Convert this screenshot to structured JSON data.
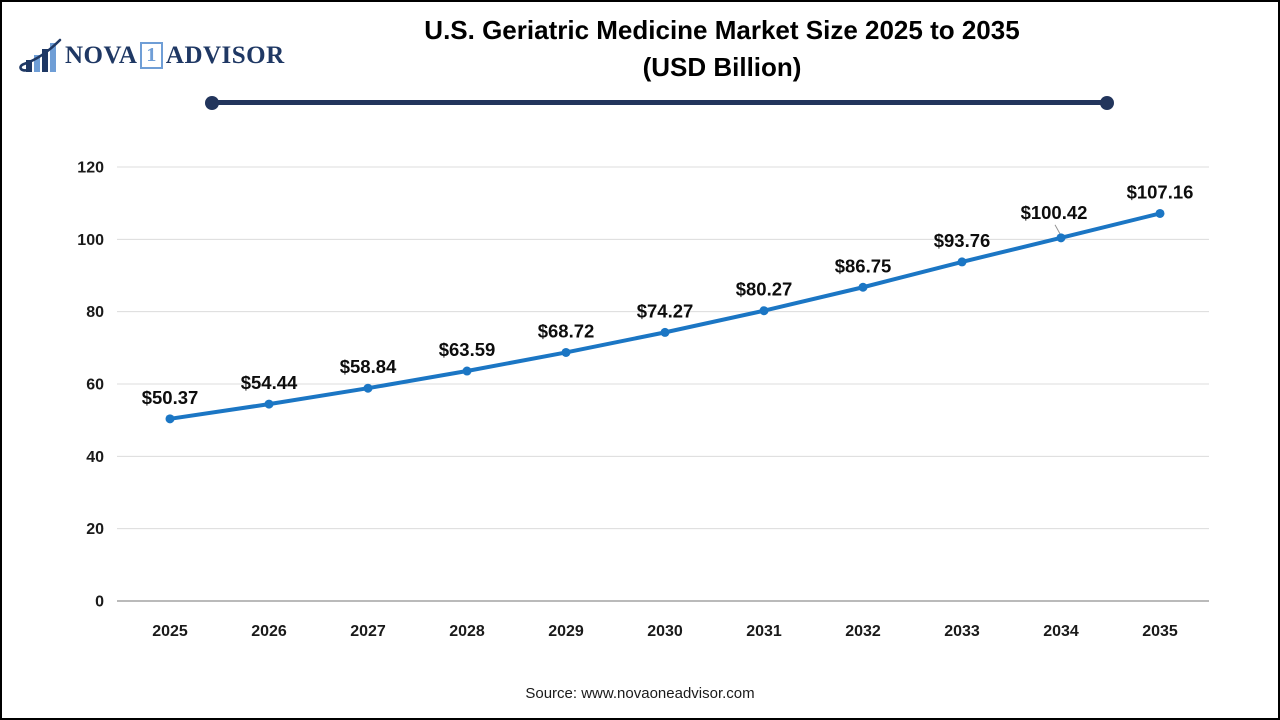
{
  "logo": {
    "part1": "NOVA",
    "badge": "1",
    "part2": "ADVISOR",
    "navy": "#1f3864",
    "light_blue": "#6f9ed6",
    "icon": "bar-chart-swoosh-icon"
  },
  "title": {
    "line1": "U.S. Geriatric Medicine Market Size 2025 to 2035",
    "line2": "(USD Billion)"
  },
  "divider": {
    "color": "#22355c"
  },
  "source_text": "Source: www.novaoneadvisor.com",
  "chart_data": {
    "type": "line",
    "title": "U.S. Geriatric Medicine Market Size 2025 to 2035 (USD Billion)",
    "unit": "USD Billion",
    "categories": [
      "2025",
      "2026",
      "2027",
      "2028",
      "2029",
      "2030",
      "2031",
      "2032",
      "2033",
      "2034",
      "2035"
    ],
    "values": [
      50.37,
      54.44,
      58.84,
      63.59,
      68.72,
      74.27,
      80.27,
      86.75,
      93.76,
      100.42,
      107.16
    ],
    "point_labels": [
      "$50.37",
      "$54.44",
      "$58.84",
      "$63.59",
      "$68.72",
      "$74.27",
      "$80.27",
      "$86.75",
      "$93.76",
      "$100.42",
      "$107.16"
    ],
    "ylim": [
      0,
      120
    ],
    "yticks": [
      0,
      20,
      40,
      60,
      80,
      100,
      120
    ],
    "grid": true,
    "legend": "none",
    "line_color": "#1b76c4",
    "marker_color": "#1b76c4",
    "gridline_color": "#dcdcdc",
    "baseline_color": "#b0b0b0",
    "leader_line_color": "#8f8f8f",
    "tick_color": "#1a1a1a",
    "label_color": "#0d0d0d"
  }
}
